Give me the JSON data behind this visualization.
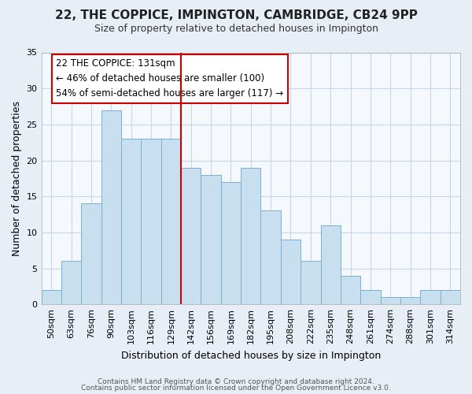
{
  "title": "22, THE COPPICE, IMPINGTON, CAMBRIDGE, CB24 9PP",
  "subtitle": "Size of property relative to detached houses in Impington",
  "xlabel": "Distribution of detached houses by size in Impington",
  "ylabel": "Number of detached properties",
  "bin_labels": [
    "50sqm",
    "63sqm",
    "76sqm",
    "90sqm",
    "103sqm",
    "116sqm",
    "129sqm",
    "142sqm",
    "156sqm",
    "169sqm",
    "182sqm",
    "195sqm",
    "208sqm",
    "222sqm",
    "235sqm",
    "248sqm",
    "261sqm",
    "274sqm",
    "288sqm",
    "301sqm",
    "314sqm"
  ],
  "bar_values": [
    2,
    6,
    14,
    27,
    23,
    23,
    23,
    19,
    18,
    17,
    19,
    13,
    9,
    6,
    11,
    4,
    2,
    1,
    1,
    2,
    2
  ],
  "bar_color": "#c8dff0",
  "bar_edge_color": "#7ab0d4",
  "vline_x_index": 6.5,
  "vline_color": "#cc0000",
  "annotation_text": "22 THE COPPICE: 131sqm\n← 46% of detached houses are smaller (100)\n54% of semi-detached houses are larger (117) →",
  "annotation_box_color": "white",
  "annotation_box_edge": "#cc0000",
  "ylim": [
    0,
    35
  ],
  "yticks": [
    0,
    5,
    10,
    15,
    20,
    25,
    30,
    35
  ],
  "footer_line1": "Contains HM Land Registry data © Crown copyright and database right 2024.",
  "footer_line2": "Contains public sector information licensed under the Open Government Licence v3.0.",
  "background_color": "#e8eef5",
  "plot_background": "#f5f8fc",
  "grid_color": "#c8d8e8",
  "title_fontsize": 11,
  "subtitle_fontsize": 9,
  "ylabel_fontsize": 9,
  "xlabel_fontsize": 9,
  "tick_fontsize": 8,
  "annot_fontsize": 8.5,
  "footer_fontsize": 6.5
}
